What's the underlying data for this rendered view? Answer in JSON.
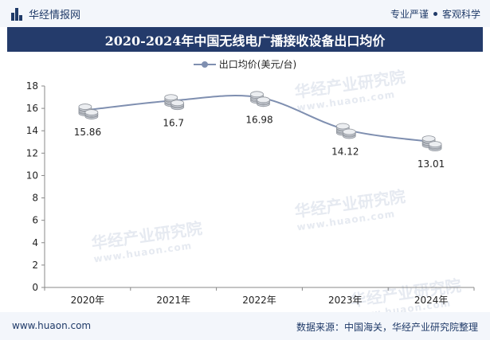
{
  "header": {
    "brand": "华经情报网",
    "tags": [
      "专业严谨",
      "客观科学"
    ]
  },
  "title": "2020-2024年中国无线电广播接收设备出口均价",
  "watermark": {
    "main": "华经产业研究院",
    "sub": "www.huaon.com"
  },
  "footer": {
    "url": "www.huaon.com",
    "source": "数据来源：中国海关，华经产业研究院整理"
  },
  "colors": {
    "header_bg": "#f3f6fb",
    "title_bg": "#243b6b",
    "brand": "#1f3a68",
    "series_line": "#7f8fb0",
    "axis": "#888888"
  },
  "chart_data": {
    "type": "line",
    "categories": [
      "2020年",
      "2021年",
      "2022年",
      "2023年",
      "2024年"
    ],
    "series": [
      {
        "name": "出口均价(美元/台)",
        "values": [
          15.86,
          16.7,
          16.98,
          14.12,
          13.01
        ],
        "labels": [
          "15.86",
          "16.7",
          "16.98",
          "14.12",
          "13.01"
        ]
      }
    ],
    "yticks": [
      "0",
      "2",
      "4",
      "6",
      "8",
      "10",
      "12",
      "14",
      "16",
      "18"
    ],
    "ylim": [
      0,
      18
    ],
    "smooth": true,
    "marker": "coin-stack-icon",
    "legend_position": "top-center",
    "grid": false
  }
}
